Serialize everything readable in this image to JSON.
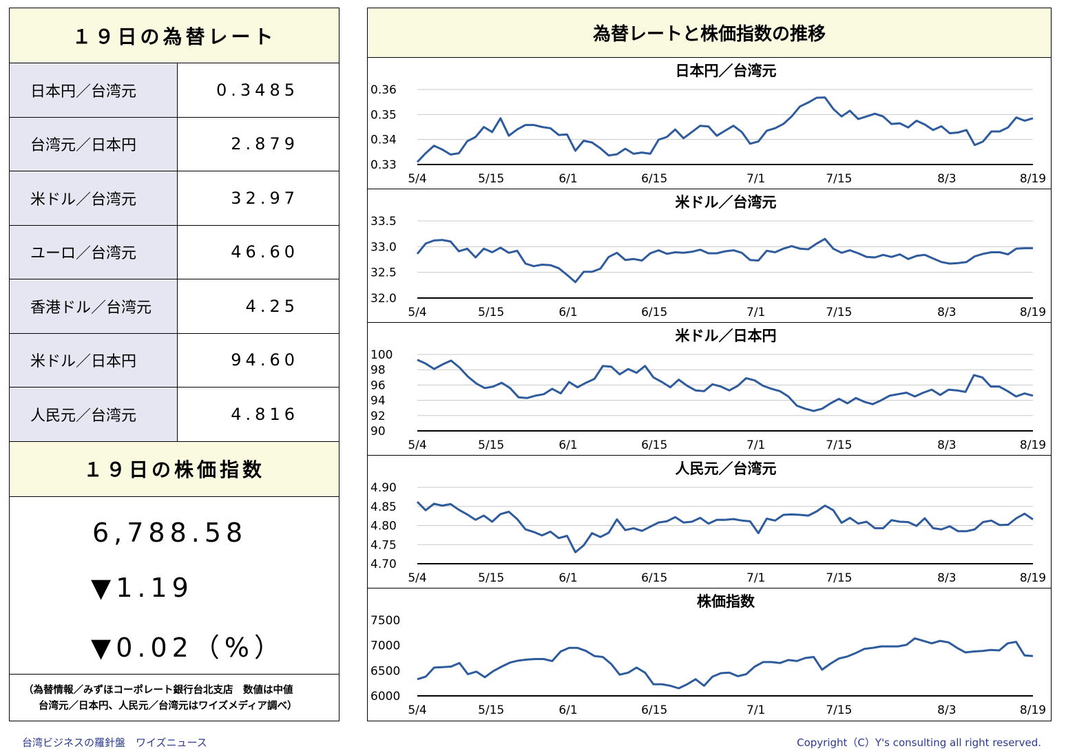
{
  "left": {
    "rates_title": "１９日の為替レート",
    "rates": [
      {
        "label": "日本円／台湾元",
        "value": "0.3485"
      },
      {
        "label": "台湾元／日本円",
        "value": "2.879"
      },
      {
        "label": "米ドル／台湾元",
        "value": "32.97"
      },
      {
        "label": "ユーロ／台湾元",
        "value": "46.60"
      },
      {
        "label": "香港ドル／台湾元",
        "value": "4.25"
      },
      {
        "label": "米ドル／日本円",
        "value": "94.60"
      },
      {
        "label": "人民元／台湾元",
        "value": "4.816"
      }
    ],
    "stock_title": "１９日の株価指数",
    "stock_value": "6,788.58",
    "stock_change": "▼1.19",
    "stock_pct": "▼0.02（%）",
    "note_line1": "（為替情報／みずほコーポレート銀行台北支店　数値は中値",
    "note_line2": "台湾元／日本円、人民元／台湾元はワイズメディア調べ）"
  },
  "right": {
    "title": "為替レートと株価指数の推移"
  },
  "footer": {
    "left": "台湾ビジネスの羅針盤　ワイズニュース",
    "right": "Copyright（C）Y's consulting all right reserved."
  },
  "colors": {
    "line": "#2e5b9c",
    "header_bg": "#fafae0",
    "label_bg": "#e5e6f1",
    "footer_text": "#2b3a8f"
  },
  "chart_data": [
    {
      "type": "line",
      "title": "日本円／台湾元",
      "x_ticks": [
        "5/4",
        "5/15",
        "6/1",
        "6/15",
        "7/1",
        "7/15",
        "8/3",
        "8/19"
      ],
      "y_ticks": [
        "0.36",
        "0.35",
        "0.34",
        "0.33"
      ],
      "ylim": [
        0.33,
        0.36
      ],
      "grid": true,
      "values": [
        0.331,
        0.3345,
        0.3375,
        0.336,
        0.334,
        0.3345,
        0.3393,
        0.341,
        0.345,
        0.343,
        0.3485,
        0.3415,
        0.344,
        0.3458,
        0.3458,
        0.345,
        0.3445,
        0.3418,
        0.342,
        0.3355,
        0.3395,
        0.3388,
        0.3365,
        0.3336,
        0.3341,
        0.3363,
        0.3343,
        0.3348,
        0.3343,
        0.3399,
        0.341,
        0.344,
        0.3405,
        0.343,
        0.3455,
        0.3452,
        0.3415,
        0.3435,
        0.3455,
        0.343,
        0.3383,
        0.3392,
        0.3435,
        0.3445,
        0.3462,
        0.3492,
        0.3532,
        0.3548,
        0.3567,
        0.3568,
        0.3522,
        0.3492,
        0.3515,
        0.3482,
        0.3492,
        0.3503,
        0.3492,
        0.3462,
        0.3465,
        0.3448,
        0.3475,
        0.346,
        0.3438,
        0.3453,
        0.3425,
        0.3428,
        0.3438,
        0.3378,
        0.3392,
        0.3432,
        0.3432,
        0.3448,
        0.3488,
        0.3475,
        0.3485
      ]
    },
    {
      "type": "line",
      "title": "米ドル／台湾元",
      "x_ticks": [
        "5/4",
        "5/15",
        "6/1",
        "6/15",
        "7/1",
        "7/15",
        "8/3",
        "8/19"
      ],
      "y_ticks": [
        "33.5",
        "33.0",
        "32.5",
        "32.0"
      ],
      "ylim": [
        32.0,
        33.5
      ],
      "grid": true,
      "values": [
        32.86,
        33.06,
        33.12,
        33.13,
        33.1,
        32.91,
        32.96,
        32.79,
        32.96,
        32.89,
        32.98,
        32.88,
        32.92,
        32.67,
        32.62,
        32.65,
        32.64,
        32.58,
        32.45,
        32.31,
        32.51,
        32.51,
        32.57,
        32.8,
        32.88,
        32.74,
        32.76,
        32.73,
        32.87,
        32.93,
        32.86,
        32.89,
        32.88,
        32.9,
        32.94,
        32.87,
        32.87,
        32.91,
        32.93,
        32.88,
        32.74,
        32.73,
        32.92,
        32.89,
        32.96,
        33.01,
        32.96,
        32.95,
        33.06,
        33.15,
        32.96,
        32.88,
        32.93,
        32.87,
        32.8,
        32.79,
        32.84,
        32.8,
        32.85,
        32.76,
        32.82,
        32.84,
        32.77,
        32.7,
        32.67,
        32.68,
        32.7,
        32.81,
        32.86,
        32.89,
        32.89,
        32.85,
        32.96,
        32.97,
        32.97
      ]
    },
    {
      "type": "line",
      "title": "米ドル／日本円",
      "x_ticks": [
        "5/4",
        "5/15",
        "6/1",
        "6/15",
        "7/1",
        "7/15",
        "8/3",
        "8/19"
      ],
      "y_ticks": [
        "100",
        "98",
        "96",
        "94",
        "92",
        "90"
      ],
      "ylim": [
        90,
        100
      ],
      "grid": true,
      "values": [
        99.3,
        98.8,
        98.1,
        98.7,
        99.2,
        98.3,
        97.1,
        96.2,
        95.6,
        95.8,
        96.3,
        95.6,
        94.4,
        94.3,
        94.6,
        94.8,
        95.5,
        94.9,
        96.4,
        95.7,
        96.3,
        96.8,
        98.5,
        98.4,
        97.4,
        98.1,
        97.6,
        98.5,
        97.0,
        96.4,
        95.7,
        96.7,
        95.9,
        95.3,
        95.2,
        96.1,
        95.8,
        95.3,
        95.9,
        96.9,
        96.6,
        95.9,
        95.5,
        95.2,
        94.5,
        93.3,
        92.9,
        92.6,
        92.9,
        93.6,
        94.2,
        93.6,
        94.3,
        93.8,
        93.5,
        94.0,
        94.6,
        94.8,
        95.0,
        94.5,
        95.0,
        95.4,
        94.7,
        95.4,
        95.3,
        95.1,
        97.3,
        97.0,
        95.8,
        95.8,
        95.2,
        94.5,
        94.9,
        94.6
      ]
    },
    {
      "type": "line",
      "title": "人民元／台湾元",
      "x_ticks": [
        "5/4",
        "5/15",
        "6/1",
        "6/15",
        "7/1",
        "7/15",
        "8/3",
        "8/19"
      ],
      "y_ticks": [
        "4.90",
        "4.85",
        "4.80",
        "4.75",
        "4.70"
      ],
      "ylim": [
        4.7,
        4.9
      ],
      "grid": true,
      "values": [
        4.862,
        4.84,
        4.857,
        4.852,
        4.856,
        4.841,
        4.829,
        4.815,
        4.826,
        4.81,
        4.83,
        4.836,
        4.817,
        4.79,
        4.783,
        4.774,
        4.784,
        4.767,
        4.773,
        4.73,
        4.748,
        4.78,
        4.77,
        4.781,
        4.816,
        4.788,
        4.793,
        4.786,
        4.797,
        4.808,
        4.811,
        4.822,
        4.808,
        4.81,
        4.82,
        4.805,
        4.815,
        4.815,
        4.817,
        4.813,
        4.811,
        4.78,
        4.818,
        4.813,
        4.828,
        4.829,
        4.828,
        4.826,
        4.837,
        4.852,
        4.84,
        4.807,
        4.82,
        4.805,
        4.81,
        4.793,
        4.793,
        4.814,
        4.81,
        4.809,
        4.799,
        4.819,
        4.793,
        4.79,
        4.798,
        4.785,
        4.785,
        4.79,
        4.809,
        4.813,
        4.801,
        4.802,
        4.819,
        4.831,
        4.816
      ]
    },
    {
      "type": "line",
      "title": "株価指数",
      "x_ticks": [
        "5/4",
        "5/15",
        "6/1",
        "6/15",
        "7/1",
        "7/15",
        "8/3",
        "8/19"
      ],
      "y_ticks": [
        "7500",
        "7000",
        "6500",
        "6000"
      ],
      "ylim": [
        6000,
        7500
      ],
      "grid": false,
      "values": [
        6330,
        6380,
        6560,
        6570,
        6580,
        6650,
        6430,
        6480,
        6370,
        6490,
        6580,
        6660,
        6700,
        6720,
        6730,
        6730,
        6690,
        6880,
        6950,
        6950,
        6890,
        6790,
        6770,
        6630,
        6420,
        6460,
        6560,
        6460,
        6230,
        6230,
        6200,
        6150,
        6230,
        6330,
        6200,
        6380,
        6450,
        6460,
        6390,
        6430,
        6580,
        6670,
        6670,
        6650,
        6710,
        6690,
        6750,
        6770,
        6520,
        6640,
        6740,
        6780,
        6850,
        6930,
        6950,
        6980,
        6980,
        6980,
        7010,
        7140,
        7090,
        7040,
        7090,
        7060,
        6950,
        6860,
        6880,
        6890,
        6910,
        6900,
        7040,
        7070,
        6800,
        6790
      ]
    }
  ]
}
